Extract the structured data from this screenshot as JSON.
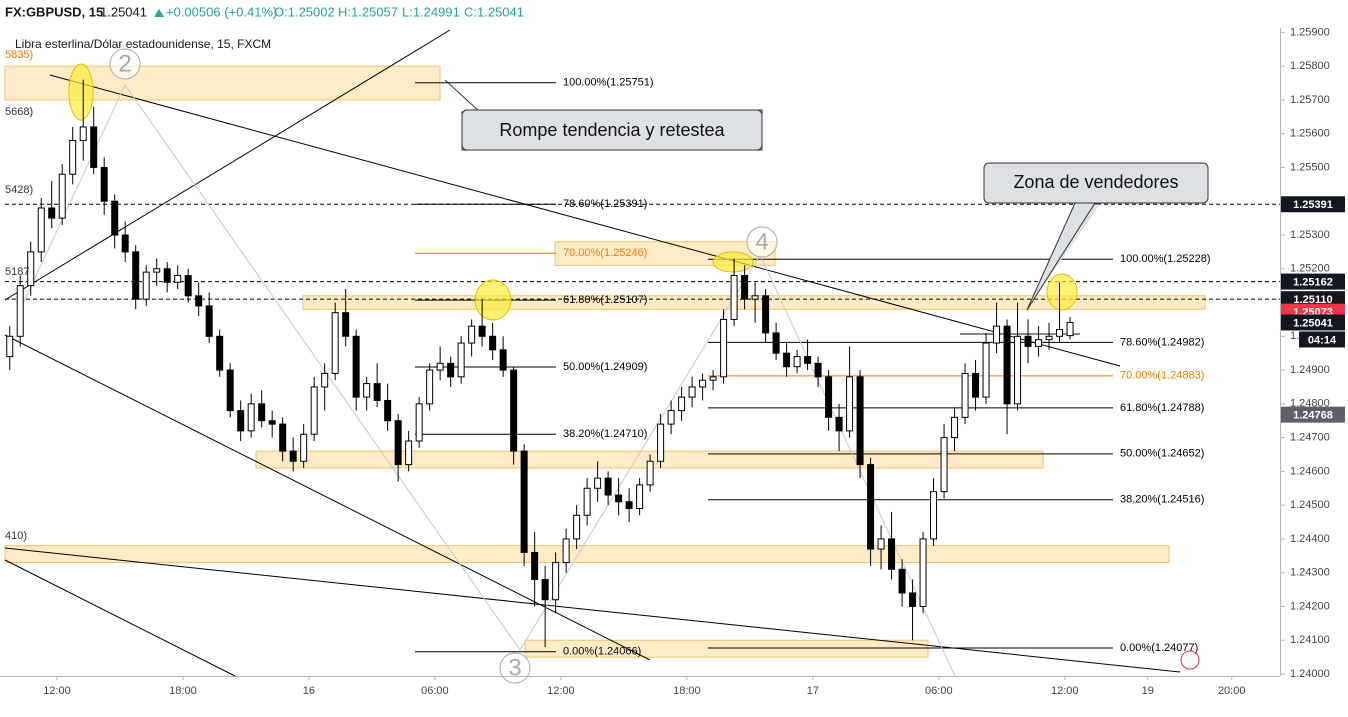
{
  "chart_data": {
    "type": "candlestick",
    "symbol": "FX:GBPUSD, 15",
    "last": "1.25041",
    "change": "+0.00506 (+0.41%)",
    "ohlc": [
      "O:1.25002",
      "H:1.25057",
      "L:1.24991",
      "C:1.25041"
    ],
    "subtitle": "Libra esterlina/Dólar estadounidense, 15, FXCM",
    "up_color": "#ffffff",
    "down_color": "#000000",
    "wick_color": "#000000",
    "open": [
      1.2494,
      1.25,
      1.2515,
      1.2525,
      1.2538,
      1.2535,
      1.2548,
      1.2558,
      1.2562,
      1.255,
      1.254,
      1.253,
      1.2525,
      1.2511,
      1.2519,
      1.252,
      1.2516,
      1.2518,
      1.2512,
      1.2509,
      1.25,
      1.249,
      1.2478,
      1.2472,
      1.248,
      1.2475,
      1.2474,
      1.2466,
      1.2463,
      1.2471,
      1.2485,
      1.2489,
      1.2507,
      1.25,
      1.2482,
      1.2486,
      1.2481,
      1.2475,
      1.2462,
      1.2469,
      1.248,
      1.249,
      1.2492,
      1.2488,
      1.2498,
      1.2503,
      1.25,
      1.2496,
      1.249,
      1.2466,
      1.2436,
      1.2428,
      1.2422,
      1.2433,
      1.244,
      1.2447,
      1.2455,
      1.2458,
      1.2453,
      1.2451,
      1.2449,
      1.2456,
      1.2463,
      1.2474,
      1.2478,
      1.2482,
      1.2485,
      1.2487,
      1.2488,
      1.2505,
      1.2518,
      1.2511,
      1.2512,
      1.2501,
      1.2495,
      1.2491,
      1.2494,
      1.2492,
      1.2488,
      1.2476,
      1.2472,
      1.2488,
      1.2462,
      1.2437,
      1.244,
      1.2431,
      1.2424,
      1.242,
      1.244,
      1.2454,
      1.247,
      1.2476,
      1.2489,
      1.2482,
      1.2498,
      1.2503,
      1.248,
      1.25,
      1.2497,
      1.2499,
      1.25,
      1.25002
    ],
    "high": [
      1.2503,
      1.2518,
      1.2528,
      1.2541,
      1.2546,
      1.2551,
      1.2562,
      1.2576,
      1.2568,
      1.2553,
      1.2542,
      1.2534,
      1.2527,
      1.2521,
      1.2523,
      1.2522,
      1.2521,
      1.252,
      1.2516,
      1.2513,
      1.2502,
      1.2492,
      1.2481,
      1.2483,
      1.2484,
      1.2478,
      1.2476,
      1.247,
      1.2474,
      1.2488,
      1.2492,
      1.251,
      1.2514,
      1.2502,
      1.2488,
      1.2492,
      1.2486,
      1.2477,
      1.2472,
      1.2482,
      1.2492,
      1.2497,
      1.2494,
      1.25,
      1.2505,
      1.2511,
      1.2504,
      1.25,
      1.2491,
      1.2468,
      1.2442,
      1.2432,
      1.2436,
      1.2443,
      1.245,
      1.2458,
      1.2463,
      1.246,
      1.2458,
      1.2455,
      1.2458,
      1.2465,
      1.2477,
      1.2481,
      1.2485,
      1.2488,
      1.2489,
      1.249,
      1.2508,
      1.2523,
      1.2521,
      1.2516,
      1.2514,
      1.2504,
      1.2498,
      1.2496,
      1.2499,
      1.2494,
      1.249,
      1.248,
      1.2497,
      1.249,
      1.2464,
      1.2444,
      1.2448,
      1.2434,
      1.2428,
      1.2442,
      1.2458,
      1.2474,
      1.2479,
      1.2492,
      1.2493,
      1.2501,
      1.251,
      1.2505,
      1.251,
      1.2505,
      1.2503,
      1.2504,
      1.2516,
      1.25057
    ],
    "low": [
      1.249,
      1.2497,
      1.2512,
      1.2522,
      1.2532,
      1.2533,
      1.2545,
      1.2552,
      1.2548,
      1.2536,
      1.2526,
      1.2522,
      1.2508,
      1.2509,
      1.2515,
      1.2513,
      1.2514,
      1.251,
      1.2506,
      1.2498,
      1.2488,
      1.2476,
      1.2469,
      1.247,
      1.2473,
      1.247,
      1.2463,
      1.246,
      1.2461,
      1.2469,
      1.2478,
      1.2487,
      1.2497,
      1.2478,
      1.2478,
      1.2479,
      1.2472,
      1.2457,
      1.246,
      1.2467,
      1.2478,
      1.2487,
      1.2485,
      1.2486,
      1.2494,
      1.2497,
      1.2493,
      1.2488,
      1.2462,
      1.2432,
      1.242,
      1.2408,
      1.2418,
      1.243,
      1.2437,
      1.2444,
      1.2451,
      1.245,
      1.2447,
      1.2445,
      1.2447,
      1.2454,
      1.2461,
      1.2471,
      1.2475,
      1.2479,
      1.2481,
      1.2484,
      1.2486,
      1.2503,
      1.2508,
      1.2504,
      1.2498,
      1.2493,
      1.2488,
      1.2489,
      1.249,
      1.2485,
      1.2472,
      1.2466,
      1.247,
      1.2458,
      1.2432,
      1.2431,
      1.2428,
      1.242,
      1.241,
      1.2418,
      1.2438,
      1.2452,
      1.2466,
      1.2474,
      1.2478,
      1.248,
      1.2495,
      1.2471,
      1.2478,
      1.2492,
      1.2494,
      1.2496,
      1.2498,
      1.24991
    ],
    "close": [
      1.25,
      1.2515,
      1.2525,
      1.2538,
      1.2535,
      1.2548,
      1.2558,
      1.2562,
      1.255,
      1.254,
      1.253,
      1.2525,
      1.2511,
      1.2519,
      1.252,
      1.2516,
      1.2518,
      1.2512,
      1.2509,
      1.25,
      1.249,
      1.2478,
      1.2472,
      1.248,
      1.2475,
      1.2474,
      1.2466,
      1.2463,
      1.2471,
      1.2485,
      1.2489,
      1.2507,
      1.25,
      1.2482,
      1.2486,
      1.2481,
      1.2475,
      1.2462,
      1.2469,
      1.248,
      1.249,
      1.2492,
      1.2488,
      1.2498,
      1.2503,
      1.25,
      1.2496,
      1.249,
      1.2466,
      1.2436,
      1.2428,
      1.2422,
      1.2433,
      1.244,
      1.2447,
      1.2455,
      1.2458,
      1.2453,
      1.2451,
      1.2449,
      1.2456,
      1.2463,
      1.2474,
      1.2478,
      1.2482,
      1.2485,
      1.2487,
      1.2488,
      1.2505,
      1.2518,
      1.2511,
      1.2512,
      1.2501,
      1.2495,
      1.2491,
      1.2494,
      1.2492,
      1.2488,
      1.2476,
      1.2472,
      1.2488,
      1.2462,
      1.2437,
      1.244,
      1.2431,
      1.2424,
      1.242,
      1.244,
      1.2454,
      1.247,
      1.2476,
      1.2489,
      1.2482,
      1.2498,
      1.2503,
      1.248,
      1.25,
      1.2497,
      1.2499,
      1.25,
      1.2502,
      1.25041
    ],
    "xlim": [
      -0.45,
      121
    ],
    "xticks": [
      {
        "value": 4.5,
        "label": "12:00"
      },
      {
        "value": 16.5,
        "label": "18:00"
      },
      {
        "value": 28.5,
        "label": "16"
      },
      {
        "value": 40.5,
        "label": "06:00"
      },
      {
        "value": 52.5,
        "label": "12:00"
      },
      {
        "value": 64.5,
        "label": "18:00"
      },
      {
        "value": 76.5,
        "label": "17"
      },
      {
        "value": 88.5,
        "label": "06:00"
      },
      {
        "value": 100.5,
        "label": "12:00"
      },
      {
        "value": 108.4,
        "label": "19"
      },
      {
        "value": 116.4,
        "label": "20:00"
      }
    ],
    "ylim": [
      1.24,
      1.2591
    ],
    "yticks": [
      {
        "value": 1.24,
        "label": "1.24000"
      },
      {
        "value": 1.241,
        "label": "1.24100"
      },
      {
        "value": 1.242,
        "label": "1.24200"
      },
      {
        "value": 1.243,
        "label": "1.24300"
      },
      {
        "value": 1.244,
        "label": "1.24400"
      },
      {
        "value": 1.245,
        "label": "1.24500"
      },
      {
        "value": 1.246,
        "label": "1.24600"
      },
      {
        "value": 1.247,
        "label": "1.24700"
      },
      {
        "value": 1.248,
        "label": "1.24800"
      },
      {
        "value": 1.249,
        "label": "1.24900"
      },
      {
        "value": 1.25,
        "label": "1.25000"
      },
      {
        "value": 1.251,
        "label": "1.25100"
      },
      {
        "value": 1.252,
        "label": "1.25200"
      },
      {
        "value": 1.253,
        "label": "1.25300"
      },
      {
        "value": 1.254,
        "label": "1.25400"
      },
      {
        "value": 1.255,
        "label": "1.25500"
      },
      {
        "value": 1.256,
        "label": "1.25600"
      },
      {
        "value": 1.257,
        "label": "1.25700"
      },
      {
        "value": 1.258,
        "label": "1.25800"
      },
      {
        "value": 1.259,
        "label": "1.25900"
      }
    ],
    "price_labels": [
      {
        "value": 1.25391,
        "color": "#131722",
        "dashed": true
      },
      {
        "value": 1.25162,
        "color": "#131722",
        "dashed": true
      },
      {
        "value": 1.2511,
        "label": "1.25110",
        "color": "#131722",
        "dashed": true
      },
      {
        "value": 1.25073,
        "color": "#f23645"
      },
      {
        "value": 1.25041,
        "color": "#131722"
      },
      {
        "value": 1.24768,
        "color": "#5d606b"
      }
    ],
    "countdown": "04:14",
    "zones": [
      {
        "low": 1.257,
        "high": 1.258
      },
      {
        "low": 1.2508,
        "high": 1.2512
      },
      {
        "low": 1.2521,
        "high": 1.2528
      },
      {
        "low": 1.2461,
        "high": 1.2466
      },
      {
        "low": 1.2433,
        "high": 1.2438
      },
      {
        "low": 1.2405,
        "high": 1.241
      }
    ],
    "fibonacci": [
      {
        "levels": [
          {
            "label": "100.00%(1.25751)",
            "value": 1.25751
          },
          {
            "label": "78.60%(1.25391)",
            "value": 1.25391
          },
          {
            "label": "70.00%(1.25246)",
            "value": 1.25246,
            "color": "#f57c00"
          },
          {
            "label": "61.80%(1.25107)",
            "value": 1.25107
          },
          {
            "label": "50.00%(1.24909)",
            "value": 1.24909
          },
          {
            "label": "38.20%(1.24710)",
            "value": 1.2471
          },
          {
            "label": "0.00%(1.24066)",
            "value": 1.24066
          }
        ]
      },
      {
        "levels": [
          {
            "label": "100.00%(1.25228)",
            "value": 1.25228
          },
          {
            "label": "78.60%(1.24982)",
            "value": 1.24982
          },
          {
            "label": "70.00%(1.24883)",
            "value": 1.24883,
            "color": "#f57c00"
          },
          {
            "label": "61.80%(1.24788)",
            "value": 1.24788
          },
          {
            "label": "50.00%(1.24652)",
            "value": 1.24652
          },
          {
            "label": "38.20%(1.24516)",
            "value": 1.24516
          },
          {
            "label": "0.00%(1.24077)",
            "value": 1.24077
          }
        ]
      }
    ],
    "left_labels": [
      "5835)",
      "5668)",
      "5428)",
      "5187",
      "410)"
    ],
    "wave_labels": [
      "2",
      "4",
      "3"
    ],
    "annotations": [
      "Rompe tendencia y retestea",
      "Zona de vendedores"
    ]
  }
}
